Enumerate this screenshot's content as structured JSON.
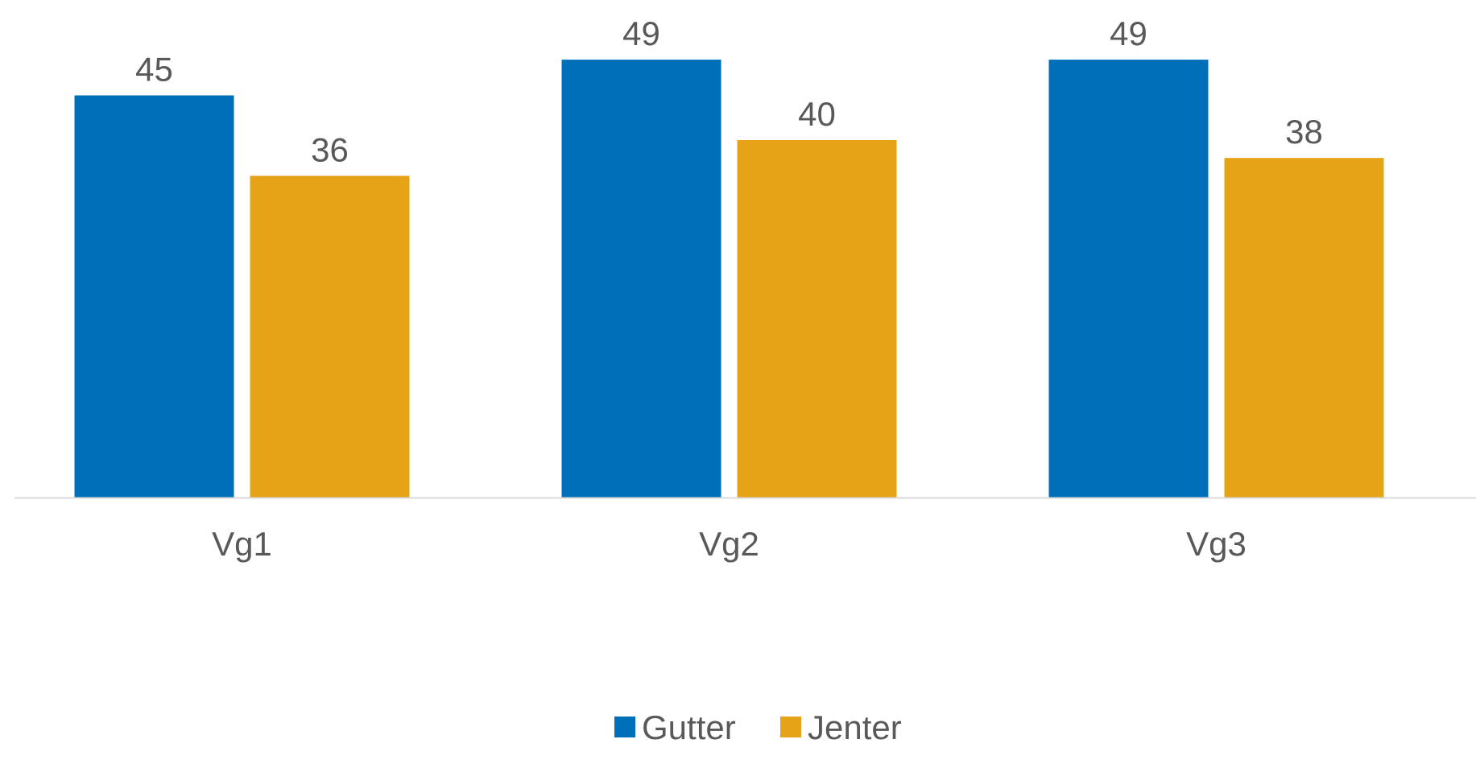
{
  "chart_data": {
    "type": "bar",
    "categories": [
      "Vg1",
      "Vg2",
      "Vg3"
    ],
    "series": [
      {
        "name": "Gutter",
        "color": "#006FBA",
        "values": [
          45,
          49,
          49
        ]
      },
      {
        "name": "Jenter",
        "color": "#E6A317",
        "values": [
          36,
          40,
          38
        ]
      }
    ],
    "value_labels": {
      "Gutter": [
        "45",
        "49",
        "49"
      ],
      "Jenter": [
        "36",
        "40",
        "38"
      ]
    },
    "title": "",
    "xlabel": "",
    "ylabel": "",
    "ylim": [
      0,
      50
    ],
    "grid": false,
    "y_axis_visible": false,
    "legend": {
      "placement": "bottom-center",
      "entries": [
        "Gutter",
        "Jenter"
      ]
    },
    "colors": {
      "axis_line": "#d9d9d9",
      "label_text": "#595959"
    }
  }
}
